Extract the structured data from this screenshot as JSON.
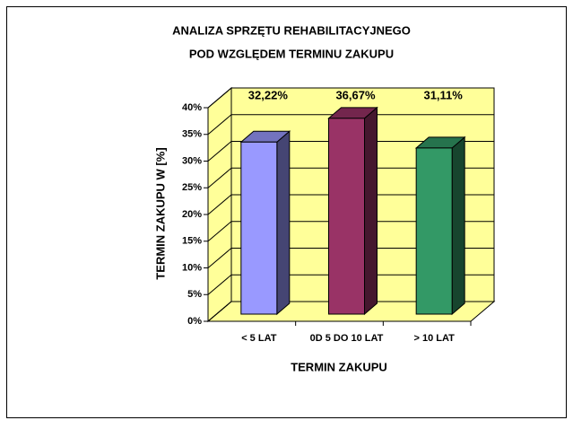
{
  "chart_data": {
    "type": "bar3d",
    "title": [
      "ANALIZA SPRZĘTU REHABILITACYJNEGO",
      "POD WZGLĘDEM TERMINU ZAKUPU"
    ],
    "x_label": "TERMIN ZAKUPU",
    "y_label": "TERMIN ZAKUPU W [%]",
    "categories": [
      "< 5 LAT",
      "0D 5 DO 10 LAT",
      "> 10 LAT"
    ],
    "values": [
      32.22,
      36.67,
      31.11
    ],
    "value_labels": [
      "32,22%",
      "36,67%",
      "31,11%"
    ],
    "colors": [
      "#9999ff",
      "#993366",
      "#339966"
    ],
    "ylim": [
      0,
      40
    ],
    "yticks": [
      {
        "value": 0,
        "label": "0%"
      },
      {
        "value": 5,
        "label": "5%"
      },
      {
        "value": 10,
        "label": "10%"
      },
      {
        "value": 15,
        "label": "15%"
      },
      {
        "value": 20,
        "label": "20%"
      },
      {
        "value": 25,
        "label": "25%"
      },
      {
        "value": 30,
        "label": "30%"
      },
      {
        "value": 35,
        "label": "35%"
      },
      {
        "value": 40,
        "label": "40%"
      }
    ],
    "grid": true
  }
}
